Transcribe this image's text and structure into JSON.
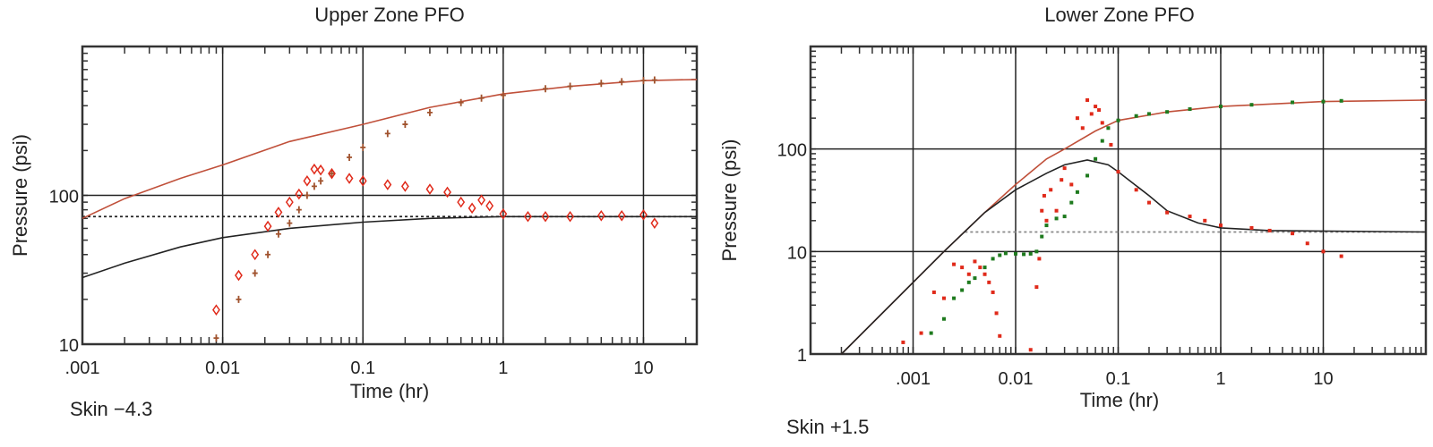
{
  "chart_data": [
    {
      "type": "scatter",
      "title": "Upper Zone PFO",
      "xlabel": "Time (hr)",
      "ylabel": "Pressure (psi)",
      "annotation": "Skin −4.3",
      "x_scale": "log",
      "y_scale": "log",
      "xlim": [
        0.001,
        24
      ],
      "ylim": [
        10,
        1000
      ],
      "x_ticks": [
        0.001,
        0.01,
        0.1,
        1,
        10
      ],
      "x_tick_labels": [
        ".001",
        "0.01",
        "0.1",
        "1",
        "10"
      ],
      "y_ticks": [
        10,
        100
      ],
      "y_tick_labels": [
        "10",
        "100"
      ],
      "grid": true,
      "horizontal_gridlines": [
        100
      ],
      "dotted_reference": 72,
      "colors": {
        "model_pressure": "#c0503a",
        "model_derivative": "#222222",
        "pressure_data": "#a0522d",
        "derivative_data": "#e02a1a"
      },
      "lines": [
        {
          "role": "model_pressure",
          "x": [
            0.001,
            0.002,
            0.005,
            0.01,
            0.03,
            0.1,
            0.3,
            1,
            3,
            10,
            24
          ],
          "y": [
            70,
            95,
            130,
            160,
            230,
            300,
            390,
            480,
            540,
            590,
            600
          ]
        },
        {
          "role": "model_derivative",
          "x": [
            0.001,
            0.002,
            0.005,
            0.01,
            0.03,
            0.1,
            0.3,
            1,
            3,
            24
          ],
          "y": [
            28,
            35,
            45,
            52,
            60,
            66,
            70,
            72,
            72,
            72
          ]
        }
      ],
      "markers": [
        {
          "role": "pressure_data",
          "marker": "plus",
          "x": [
            0.009,
            0.013,
            0.017,
            0.021,
            0.025,
            0.03,
            0.035,
            0.04,
            0.045,
            0.05,
            0.06,
            0.08,
            0.1,
            0.15,
            0.2,
            0.3,
            0.5,
            0.7,
            1,
            2,
            3,
            5,
            7,
            10,
            12
          ],
          "y": [
            11,
            20,
            30,
            40,
            55,
            65,
            80,
            100,
            115,
            125,
            140,
            180,
            210,
            260,
            300,
            360,
            420,
            450,
            470,
            520,
            540,
            565,
            580,
            590,
            595
          ]
        },
        {
          "role": "derivative_data",
          "marker": "diamond",
          "x": [
            0.009,
            0.013,
            0.017,
            0.021,
            0.025,
            0.03,
            0.035,
            0.04,
            0.045,
            0.05,
            0.06,
            0.08,
            0.1,
            0.15,
            0.2,
            0.3,
            0.4,
            0.5,
            0.6,
            0.7,
            0.8,
            1,
            1.5,
            2,
            3,
            5,
            7,
            10,
            12
          ],
          "y": [
            17,
            29,
            40,
            62,
            77,
            90,
            102,
            125,
            150,
            148,
            140,
            130,
            125,
            118,
            115,
            110,
            105,
            90,
            82,
            93,
            85,
            75,
            72,
            72,
            72,
            73,
            73,
            74,
            65
          ]
        }
      ]
    },
    {
      "type": "scatter",
      "title": "Lower Zone PFO",
      "xlabel": "Time (hr)",
      "ylabel": "Pressure (psi)",
      "annotation": "Skin +1.5",
      "x_scale": "log",
      "y_scale": "log",
      "xlim": [
        0.0001,
        100
      ],
      "ylim": [
        1,
        1000
      ],
      "x_ticks": [
        0.001,
        0.01,
        0.1,
        1,
        10
      ],
      "x_tick_labels": [
        ".001",
        "0.01",
        "0.1",
        "1",
        "10"
      ],
      "y_ticks": [
        1,
        10,
        100
      ],
      "y_tick_labels": [
        "1",
        "10",
        "100"
      ],
      "grid": true,
      "horizontal_gridlines": [
        10,
        100
      ],
      "dotted_reference": 15.5,
      "colors": {
        "model_pressure": "#c0503a",
        "model_derivative": "#222222",
        "pressure_data": "#1e7a1e",
        "derivative_data": "#e02a1a"
      },
      "lines": [
        {
          "role": "model_pressure",
          "x": [
            0.0002,
            0.002,
            0.005,
            0.01,
            0.02,
            0.03,
            0.06,
            0.1,
            0.3,
            1,
            10,
            100
          ],
          "y": [
            1,
            10,
            24,
            45,
            80,
            100,
            150,
            190,
            230,
            260,
            290,
            300
          ]
        },
        {
          "role": "model_derivative",
          "x": [
            0.0002,
            0.002,
            0.005,
            0.01,
            0.02,
            0.03,
            0.05,
            0.08,
            0.1,
            0.2,
            0.3,
            0.6,
            1,
            3,
            100
          ],
          "y": [
            1,
            10,
            24,
            40,
            58,
            70,
            78,
            70,
            60,
            35,
            25,
            19,
            17,
            16,
            15.5
          ]
        }
      ],
      "markers": [
        {
          "role": "pressure_data",
          "marker": "dot",
          "x": [
            0.0015,
            0.002,
            0.0025,
            0.003,
            0.0035,
            0.004,
            0.005,
            0.006,
            0.007,
            0.008,
            0.01,
            0.012,
            0.014,
            0.016,
            0.018,
            0.02,
            0.025,
            0.03,
            0.035,
            0.04,
            0.05,
            0.06,
            0.07,
            0.08,
            0.1,
            0.15,
            0.2,
            0.3,
            0.5,
            1,
            2,
            5,
            10,
            15
          ],
          "y": [
            1.6,
            2.2,
            3.5,
            4.2,
            5,
            5.5,
            7,
            8.5,
            9.2,
            9.6,
            9.5,
            9.4,
            9.5,
            10,
            14,
            18,
            21,
            22,
            30,
            38,
            55,
            80,
            120,
            160,
            190,
            210,
            220,
            230,
            245,
            260,
            270,
            285,
            290,
            295
          ]
        },
        {
          "role": "derivative_data",
          "marker": "dot",
          "x": [
            0.0008,
            0.0012,
            0.0016,
            0.002,
            0.0025,
            0.003,
            0.0035,
            0.004,
            0.0045,
            0.005,
            0.0055,
            0.006,
            0.0065,
            0.007,
            0.014,
            0.016,
            0.017,
            0.018,
            0.019,
            0.02,
            0.022,
            0.025,
            0.028,
            0.03,
            0.035,
            0.04,
            0.045,
            0.05,
            0.055,
            0.06,
            0.065,
            0.07,
            0.085,
            0.1,
            0.15,
            0.2,
            0.3,
            0.5,
            0.7,
            1,
            2,
            3,
            5,
            7,
            10,
            15
          ],
          "y": [
            1.3,
            1.6,
            4,
            3.5,
            7.5,
            7,
            6,
            8,
            7,
            6,
            5,
            4,
            2.5,
            1.5,
            1.1,
            4.5,
            8.5,
            25,
            35,
            20,
            40,
            25,
            50,
            65,
            45,
            200,
            160,
            300,
            220,
            260,
            240,
            180,
            110,
            60,
            40,
            30,
            24,
            22,
            20,
            18,
            17,
            16,
            15,
            12,
            10,
            9
          ]
        }
      ]
    }
  ]
}
